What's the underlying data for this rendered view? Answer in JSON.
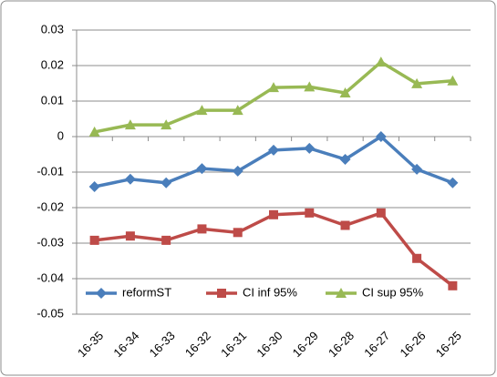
{
  "chart_data": {
    "type": "line",
    "categories": [
      "16-35",
      "16-34",
      "16-33",
      "16-32",
      "16-31",
      "16-30",
      "16-29",
      "16-28",
      "16-27",
      "16-26",
      "16-25"
    ],
    "series": [
      {
        "name": "reformST",
        "color": "#4a7ebb",
        "marker": "diamond",
        "values": [
          -0.0141,
          -0.012,
          -0.013,
          -0.009,
          -0.0097,
          -0.0038,
          -0.0033,
          -0.0064,
          0,
          -0.0092,
          -0.013
        ]
      },
      {
        "name": "CI inf 95%",
        "color": "#be4b48",
        "marker": "square",
        "values": [
          -0.0292,
          -0.028,
          -0.0292,
          -0.026,
          -0.027,
          -0.022,
          -0.0215,
          -0.025,
          -0.0215,
          -0.0343,
          -0.042
        ]
      },
      {
        "name": "CI sup 95%",
        "color": "#98b954",
        "marker": "triangle",
        "values": [
          0.0013,
          0.0033,
          0.0033,
          0.0074,
          0.0074,
          0.0138,
          0.014,
          0.0123,
          0.021,
          0.0149,
          0.0157
        ]
      }
    ],
    "ylim": [
      -0.05,
      0.03
    ],
    "yticks": [
      0.03,
      0.02,
      0.01,
      0,
      -0.01,
      -0.02,
      -0.03,
      -0.04,
      -0.05
    ],
    "grid": true,
    "legend": "bottom"
  }
}
